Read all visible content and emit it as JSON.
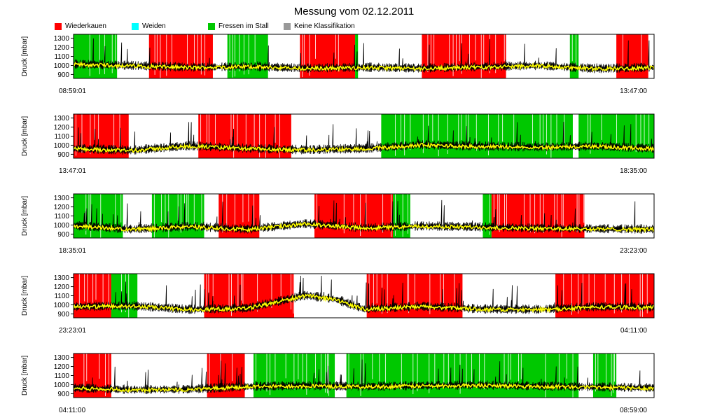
{
  "title": "Messung vom 02.12.2011",
  "legend": [
    {
      "label": "Wiederkauen",
      "color": "#ff0000"
    },
    {
      "label": "Weiden",
      "color": "#00ffff"
    },
    {
      "label": "Fressen im Stall",
      "color": "#00c800"
    },
    {
      "label": "Keine Klassifikation",
      "color": "#999999"
    }
  ],
  "chart_data": {
    "type": "line",
    "ylabel": "Druck [mbar]",
    "yticks": [
      900,
      1000,
      1100,
      1200,
      1300
    ],
    "ylim": [
      880,
      1320
    ],
    "grid": false,
    "legend_position": "top-left",
    "series_colors": {
      "pressure": "#000000",
      "smoothed": "#ffff00"
    },
    "panels": [
      {
        "start": "08:59:01",
        "end": "13:47:00",
        "segments": [
          {
            "class": "Fressen im Stall",
            "from": 0.0,
            "to": 0.075
          },
          {
            "class": "Wiederkauen",
            "from": 0.13,
            "to": 0.24
          },
          {
            "class": "Fressen im Stall",
            "from": 0.265,
            "to": 0.335
          },
          {
            "class": "Wiederkauen",
            "from": 0.39,
            "to": 0.485
          },
          {
            "class": "Fressen im Stall",
            "from": 0.485,
            "to": 0.49
          },
          {
            "class": "Wiederkauen",
            "from": 0.6,
            "to": 0.745
          },
          {
            "class": "Fressen im Stall",
            "from": 0.855,
            "to": 0.87
          },
          {
            "class": "Wiederkauen",
            "from": 0.935,
            "to": 0.99
          }
        ],
        "levels": [
          [
            0.0,
            1010
          ],
          [
            0.1,
            995
          ],
          [
            0.2,
            975
          ],
          [
            0.3,
            985
          ],
          [
            0.4,
            965
          ],
          [
            0.5,
            975
          ],
          [
            0.6,
            965
          ],
          [
            0.7,
            980
          ],
          [
            0.8,
            995
          ],
          [
            0.9,
            960
          ],
          [
            1.0,
            975
          ]
        ]
      },
      {
        "start": "13:47:01",
        "end": "18:35:00",
        "segments": [
          {
            "class": "Wiederkauen",
            "from": 0.0,
            "to": 0.095
          },
          {
            "class": "Wiederkauen",
            "from": 0.215,
            "to": 0.375
          },
          {
            "class": "Fressen im Stall",
            "from": 0.53,
            "to": 0.86
          },
          {
            "class": "Fressen im Stall",
            "from": 0.87,
            "to": 1.0
          }
        ],
        "levels": [
          [
            0.0,
            960
          ],
          [
            0.1,
            940
          ],
          [
            0.2,
            990
          ],
          [
            0.3,
            960
          ],
          [
            0.4,
            945
          ],
          [
            0.5,
            960
          ],
          [
            0.6,
            1000
          ],
          [
            0.7,
            985
          ],
          [
            0.8,
            975
          ],
          [
            0.9,
            985
          ],
          [
            1.0,
            960
          ]
        ]
      },
      {
        "start": "18:35:01",
        "end": "23:23:00",
        "segments": [
          {
            "class": "Fressen im Stall",
            "from": 0.0,
            "to": 0.085
          },
          {
            "class": "Fressen im Stall",
            "from": 0.135,
            "to": 0.225
          },
          {
            "class": "Wiederkauen",
            "from": 0.25,
            "to": 0.32
          },
          {
            "class": "Wiederkauen",
            "from": 0.415,
            "to": 0.55
          },
          {
            "class": "Fressen im Stall",
            "from": 0.55,
            "to": 0.58
          },
          {
            "class": "Fressen im Stall",
            "from": 0.705,
            "to": 0.72
          },
          {
            "class": "Wiederkauen",
            "from": 0.72,
            "to": 0.88
          }
        ],
        "levels": [
          [
            0.0,
            990
          ],
          [
            0.1,
            950
          ],
          [
            0.2,
            980
          ],
          [
            0.3,
            950
          ],
          [
            0.4,
            1010
          ],
          [
            0.5,
            965
          ],
          [
            0.6,
            985
          ],
          [
            0.7,
            975
          ],
          [
            0.8,
            960
          ],
          [
            0.9,
            955
          ],
          [
            1.0,
            950
          ]
        ]
      },
      {
        "start": "23:23:01",
        "end": "04:11:00",
        "segments": [
          {
            "class": "Wiederkauen",
            "from": 0.0,
            "to": 0.065
          },
          {
            "class": "Fressen im Stall",
            "from": 0.065,
            "to": 0.11
          },
          {
            "class": "Wiederkauen",
            "from": 0.225,
            "to": 0.38
          },
          {
            "class": "Wiederkauen",
            "from": 0.505,
            "to": 0.67
          },
          {
            "class": "Wiederkauen",
            "from": 0.83,
            "to": 1.0
          }
        ],
        "levels": [
          [
            0.0,
            975
          ],
          [
            0.1,
            985
          ],
          [
            0.2,
            945
          ],
          [
            0.3,
            960
          ],
          [
            0.4,
            1100
          ],
          [
            0.45,
            1060
          ],
          [
            0.5,
            950
          ],
          [
            0.6,
            980
          ],
          [
            0.7,
            950
          ],
          [
            0.8,
            945
          ],
          [
            0.9,
            975
          ],
          [
            1.0,
            970
          ]
        ]
      },
      {
        "start": "04:11:00",
        "end": "08:59:00",
        "segments": [
          {
            "class": "Wiederkauen",
            "from": 0.0,
            "to": 0.065
          },
          {
            "class": "Wiederkauen",
            "from": 0.23,
            "to": 0.295
          },
          {
            "class": "Fressen im Stall",
            "from": 0.31,
            "to": 0.45
          },
          {
            "class": "Fressen im Stall",
            "from": 0.47,
            "to": 0.87
          },
          {
            "class": "Fressen im Stall",
            "from": 0.895,
            "to": 0.935
          }
        ],
        "levels": [
          [
            0.0,
            960
          ],
          [
            0.1,
            940
          ],
          [
            0.2,
            945
          ],
          [
            0.3,
            975
          ],
          [
            0.4,
            985
          ],
          [
            0.5,
            975
          ],
          [
            0.6,
            985
          ],
          [
            0.7,
            990
          ],
          [
            0.8,
            980
          ],
          [
            0.9,
            970
          ],
          [
            1.0,
            960
          ]
        ]
      }
    ]
  }
}
